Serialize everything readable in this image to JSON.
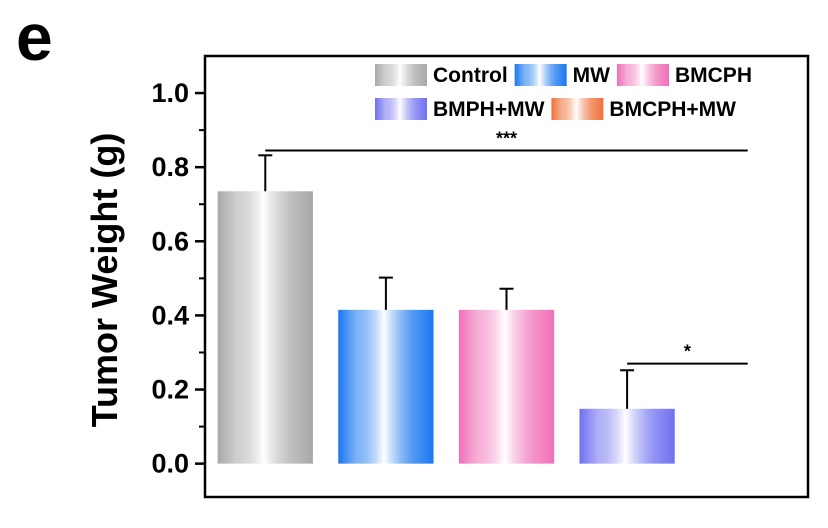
{
  "panel_label": "e",
  "chart_data": {
    "type": "bar",
    "title": "",
    "xlabel": "",
    "ylabel": "Tumor Weight (g)",
    "ylim": [
      -0.09,
      1.1
    ],
    "yticks": [
      "0.0",
      "0.2",
      "0.4",
      "0.6",
      "0.8",
      "1.0"
    ],
    "categories": [
      "Control",
      "MW",
      "BMCPH",
      "BMPH+MW",
      "BMCPH+MW"
    ],
    "values": [
      0.735,
      0.415,
      0.415,
      0.148,
      0.0
    ],
    "errors": [
      0.097,
      0.087,
      0.057,
      0.104,
      0.0
    ],
    "colors": [
      "#a8a8a8",
      "#1a78f0",
      "#f070b8",
      "#7070f0",
      "#f07038"
    ],
    "legend": {
      "placement": "top-right",
      "entries": [
        "Control",
        "MW",
        "BMCPH",
        "BMPH+MW",
        "BMCPH+MW"
      ]
    },
    "grid": false,
    "significance": [
      {
        "from": 0,
        "to": 4,
        "y": 0.845,
        "label": "***"
      },
      {
        "from": 3,
        "to": 4,
        "y": 0.27,
        "label": "*"
      }
    ]
  }
}
